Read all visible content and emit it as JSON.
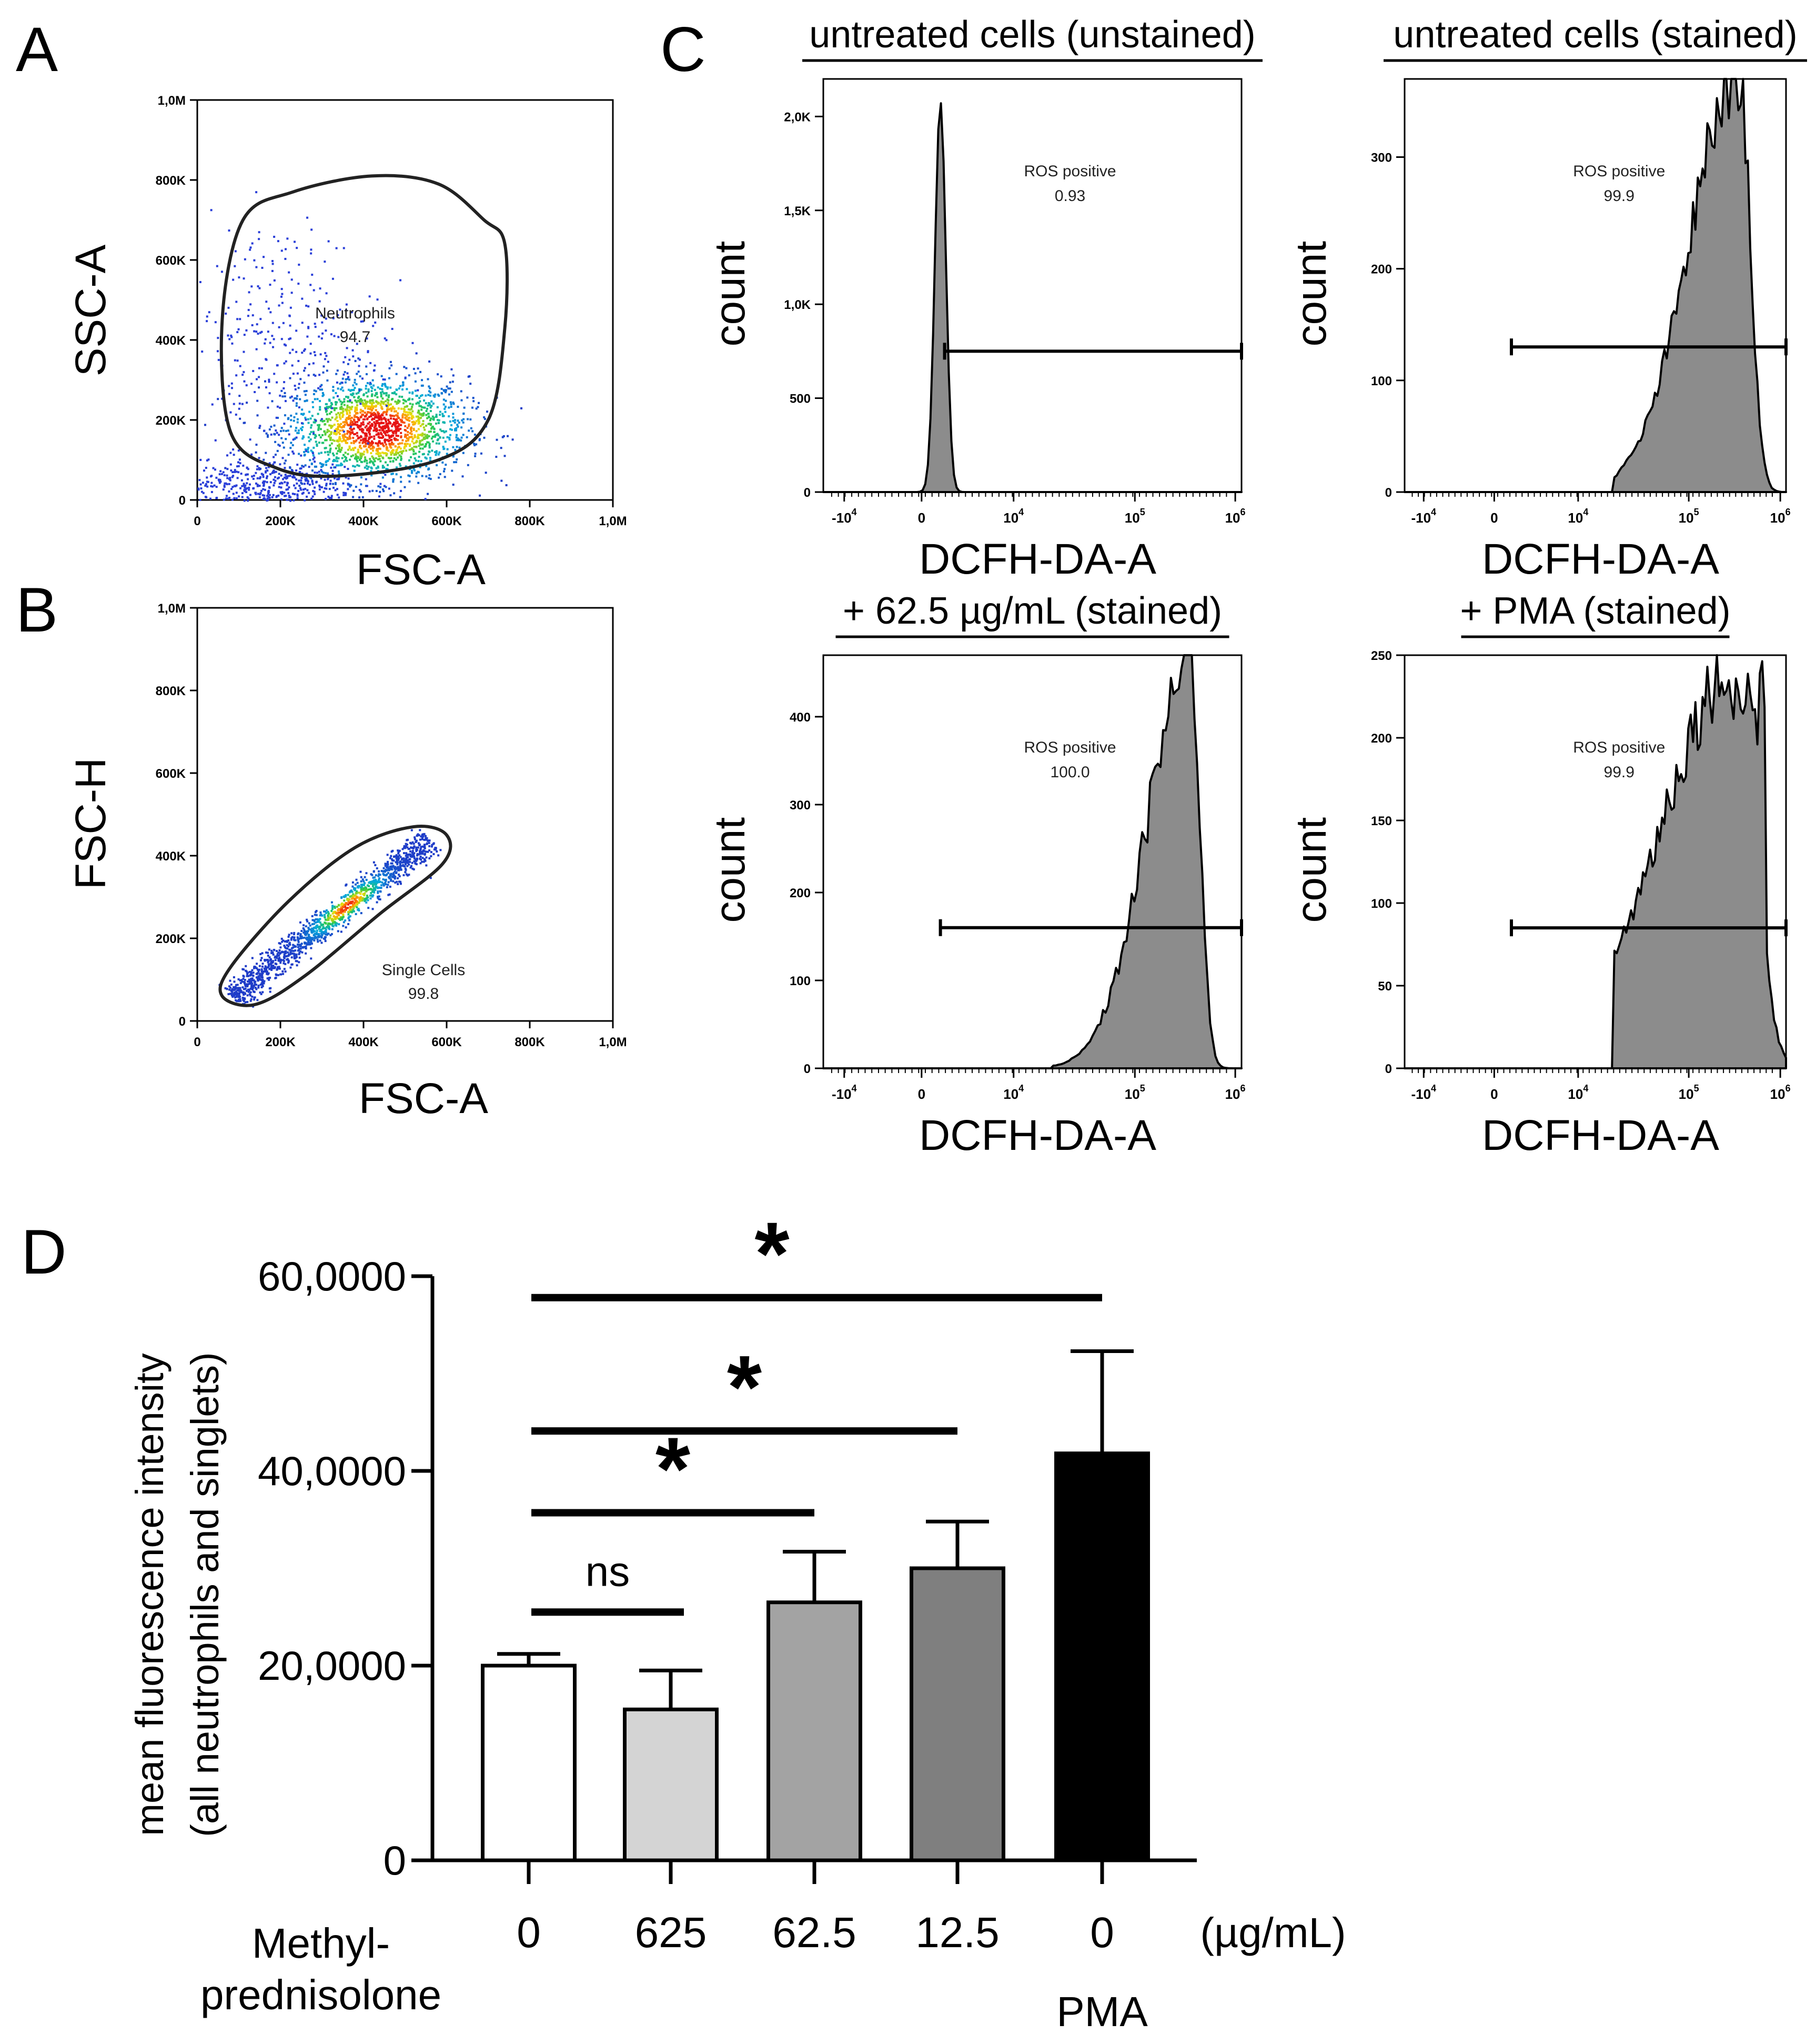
{
  "panel_letters": {
    "a": "A",
    "b": "B",
    "c": "C",
    "d": "D"
  },
  "chart_data": [
    {
      "id": "A",
      "type": "scatter",
      "xlabel": "FSC-A",
      "ylabel": "SSC-A",
      "xlim": [
        0,
        1000000
      ],
      "ylim": [
        0,
        1000000
      ],
      "x_ticks": [
        {
          "v": 0,
          "label": "0"
        },
        {
          "v": 200000,
          "label": "200K"
        },
        {
          "v": 400000,
          "label": "400K"
        },
        {
          "v": 600000,
          "label": "600K"
        },
        {
          "v": 800000,
          "label": "800K"
        },
        {
          "v": 1000000,
          "label": "1,0M"
        }
      ],
      "y_ticks": [
        {
          "v": 0,
          "label": "0"
        },
        {
          "v": 200000,
          "label": "200K"
        },
        {
          "v": 400000,
          "label": "400K"
        },
        {
          "v": 600000,
          "label": "600K"
        },
        {
          "v": 800000,
          "label": "800K"
        },
        {
          "v": 1000000,
          "label": "1,0M"
        }
      ],
      "gate": {
        "name": "Neutrophils",
        "value": "94.7",
        "polygon": [
          [
            60000,
            450000
          ],
          [
            110000,
            700000
          ],
          [
            230000,
            770000
          ],
          [
            420000,
            810000
          ],
          [
            580000,
            790000
          ],
          [
            690000,
            700000
          ],
          [
            740000,
            640000
          ],
          [
            740000,
            430000
          ],
          [
            700000,
            200000
          ],
          [
            580000,
            100000
          ],
          [
            340000,
            60000
          ],
          [
            190000,
            80000
          ],
          [
            80000,
            170000
          ]
        ]
      },
      "populations": [
        {
          "cx": 430000,
          "cy": 180000,
          "sx": 110000,
          "sy": 65000,
          "n": 1800
        },
        {
          "cx": 200000,
          "cy": 400000,
          "sx": 120000,
          "sy": 150000,
          "n": 320
        },
        {
          "cx": 150000,
          "cy": 40000,
          "sx": 120000,
          "sy": 35000,
          "n": 500
        }
      ]
    },
    {
      "id": "B",
      "type": "scatter",
      "xlabel": "FSC-A",
      "ylabel": "FSC-H",
      "xlim": [
        0,
        1000000
      ],
      "ylim": [
        0,
        1000000
      ],
      "x_ticks": [
        {
          "v": 0,
          "label": "0"
        },
        {
          "v": 200000,
          "label": "200K"
        },
        {
          "v": 400000,
          "label": "400K"
        },
        {
          "v": 600000,
          "label": "600K"
        },
        {
          "v": 800000,
          "label": "800K"
        },
        {
          "v": 1000000,
          "label": "1,0M"
        }
      ],
      "y_ticks": [
        {
          "v": 0,
          "label": "0"
        },
        {
          "v": 200000,
          "label": "200K"
        },
        {
          "v": 400000,
          "label": "400K"
        },
        {
          "v": 600000,
          "label": "600K"
        },
        {
          "v": 800000,
          "label": "800K"
        },
        {
          "v": 1000000,
          "label": "1,0M"
        }
      ],
      "gate": {
        "name": "Single Cells",
        "value": "99.8",
        "polygon": [
          [
            60000,
            60000
          ],
          [
            80000,
            130000
          ],
          [
            220000,
            290000
          ],
          [
            380000,
            420000
          ],
          [
            520000,
            470000
          ],
          [
            600000,
            450000
          ],
          [
            590000,
            380000
          ],
          [
            440000,
            260000
          ],
          [
            260000,
            110000
          ],
          [
            140000,
            40000
          ]
        ]
      },
      "line_pop": {
        "x0": 80000,
        "y0": 60000,
        "x1": 560000,
        "y1": 440000,
        "n": 1400,
        "spread": 15000,
        "dense": 0.58
      }
    }
  ],
  "histograms": {
    "xlabel": "DCFH-DA-A",
    "ylabel": "count",
    "gate_label": "ROS positive",
    "x_ticks": [
      "-10^4",
      "0",
      "10^4",
      "10^5",
      "10^6"
    ],
    "panels": [
      {
        "title": "untreated cells (unstained)",
        "ymax": 2200,
        "yticks": [
          0,
          500,
          1000,
          1500,
          2000
        ],
        "ytick_labels": [
          "0",
          "500",
          "1,0K",
          "1,5K",
          "2,0K"
        ],
        "gate_pct": "0.93",
        "gate_count": 750,
        "peak_pos": 0.28,
        "peak_height": 2080,
        "peak_width": 0.013,
        "shape": "narrow"
      },
      {
        "title": "untreated cells (stained)",
        "ymax": 370,
        "yticks": [
          0,
          100,
          200,
          300
        ],
        "ytick_labels": [
          "0",
          "100",
          "200",
          "300"
        ],
        "gate_pct": "99.9",
        "gate_count": 130,
        "peak_pos": 0.88,
        "peak_height": 365,
        "peak_width": 0.05,
        "shape": "skewed"
      },
      {
        "title": "+ 62.5 µg/mL (stained)",
        "ymax": 470,
        "yticks": [
          0,
          100,
          200,
          300,
          400
        ],
        "ytick_labels": [
          "0",
          "100",
          "200",
          "300",
          "400"
        ],
        "gate_pct": "100.0",
        "gate_count": 160,
        "peak_pos": 0.88,
        "peak_height": 450,
        "peak_width": 0.04,
        "shape": "skewed"
      },
      {
        "title": "+ PMA (stained)",
        "ymax": 250,
        "yticks": [
          0,
          50,
          100,
          150,
          200,
          250
        ],
        "ytick_labels": [
          "0",
          "50",
          "100",
          "150",
          "200",
          "250"
        ],
        "gate_pct": "99.9",
        "gate_count": 85,
        "peak_pos": 0.88,
        "peak_height": 240,
        "peak_width": 0.08,
        "shape": "broad"
      }
    ]
  },
  "bar_chart": {
    "type": "bar",
    "ylabel_line1": "mean fluorescence intensity",
    "ylabel_line2": "(all neutrophils and singlets)",
    "ylim": [
      0,
      600000
    ],
    "yticks": [
      0,
      200000,
      400000,
      600000
    ],
    "ytick_labels": [
      "0",
      "20,0000",
      "40,0000",
      "60,0000"
    ],
    "categories": [
      "0",
      "625",
      "62.5",
      "12.5",
      "0"
    ],
    "values": [
      200000,
      155000,
      265000,
      300000,
      418000
    ],
    "errors": [
      12000,
      40000,
      52000,
      48000,
      105000
    ],
    "colors": [
      "#ffffff",
      "#d4d4d4",
      "#a3a3a3",
      "#7f7f7f",
      "#000000"
    ],
    "unit": "(µg/mL)",
    "group1_line1": "Methyl-",
    "group1_line2": "prednisolone",
    "group2": "PMA",
    "comparisons": [
      {
        "from": 0,
        "to": 1,
        "y": 255000,
        "label": "ns"
      },
      {
        "from": 0,
        "to": 2,
        "y": 357000,
        "label": "*"
      },
      {
        "from": 0,
        "to": 3,
        "y": 441000,
        "label": "*"
      },
      {
        "from": 0,
        "to": 4,
        "y": 578000,
        "label": "*"
      }
    ]
  }
}
